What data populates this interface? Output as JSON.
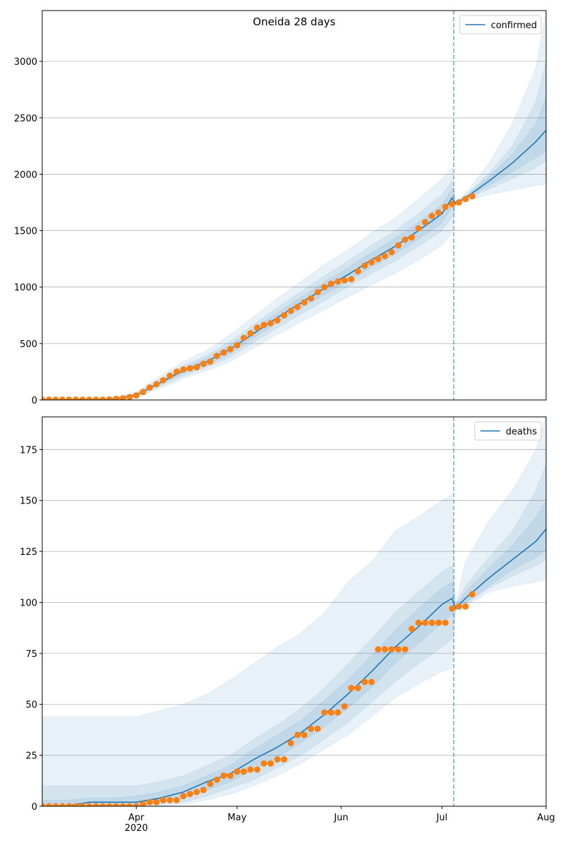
{
  "chart_data": [
    {
      "type": "line",
      "title": "Oneida 28 days",
      "x": [
        0,
        7,
        14,
        21,
        28,
        35,
        42,
        49,
        56,
        63,
        70,
        77,
        84,
        91,
        98,
        105,
        112,
        119,
        122,
        123,
        126,
        133,
        140,
        147,
        150
      ],
      "series": [
        {
          "name": "confirmed",
          "color": "#1f77b4",
          "values": [
            0,
            0,
            2,
            5,
            45,
            150,
            260,
            340,
            450,
            590,
            730,
            860,
            990,
            1110,
            1240,
            1360,
            1500,
            1650,
            1790,
            1740,
            1790,
            1940,
            2100,
            2290,
            2390
          ]
        }
      ],
      "bands": [
        {
          "lower": [
            0,
            0,
            0,
            0,
            25,
            100,
            190,
            260,
            340,
            460,
            580,
            690,
            800,
            910,
            1020,
            1120,
            1240,
            1370,
            1480,
            1720,
            1760,
            1820,
            1860,
            1900,
            1910
          ],
          "upper": [
            5,
            5,
            8,
            15,
            70,
            210,
            340,
            440,
            580,
            740,
            900,
            1050,
            1200,
            1330,
            1480,
            1610,
            1780,
            1960,
            2060,
            1760,
            1830,
            2100,
            2450,
            2950,
            3450
          ]
        },
        {
          "lower": [
            0,
            0,
            0,
            2,
            30,
            120,
            215,
            290,
            380,
            510,
            640,
            760,
            880,
            1000,
            1120,
            1230,
            1360,
            1500,
            1620,
            1730,
            1775,
            1870,
            1960,
            2060,
            2120
          ],
          "upper": [
            3,
            3,
            5,
            10,
            60,
            185,
            305,
            395,
            520,
            670,
            820,
            960,
            1100,
            1230,
            1370,
            1500,
            1650,
            1820,
            1940,
            1755,
            1810,
            2010,
            2250,
            2650,
            3000
          ]
        },
        {
          "lower": [
            0,
            0,
            1,
            3,
            38,
            135,
            235,
            310,
            410,
            550,
            685,
            810,
            935,
            1050,
            1175,
            1290,
            1425,
            1565,
            1710,
            1735,
            1780,
            1900,
            2020,
            2150,
            2200
          ],
          "upper": [
            1,
            1,
            3,
            7,
            52,
            165,
            285,
            370,
            490,
            630,
            775,
            910,
            1045,
            1170,
            1305,
            1430,
            1575,
            1735,
            1870,
            1748,
            1800,
            1980,
            2180,
            2450,
            2680
          ]
        }
      ],
      "band_color": "#1f77b4",
      "observed": {
        "color": "#ff7f0e",
        "x": [
          0,
          2,
          4,
          6,
          8,
          10,
          12,
          14,
          16,
          18,
          20,
          22,
          24,
          26,
          28,
          30,
          32,
          34,
          36,
          38,
          40,
          42,
          44,
          46,
          48,
          50,
          52,
          54,
          56,
          58,
          60,
          62,
          64,
          66,
          68,
          70,
          72,
          74,
          76,
          78,
          80,
          82,
          84,
          86,
          88,
          90,
          92,
          94,
          96,
          98,
          100,
          102,
          104,
          106,
          108,
          110,
          112,
          114,
          116,
          118,
          120,
          122,
          124,
          126,
          128
        ],
        "values": [
          2,
          2,
          2,
          2,
          2,
          2,
          2,
          2,
          2,
          2,
          5,
          10,
          15,
          25,
          40,
          70,
          110,
          140,
          175,
          215,
          250,
          270,
          280,
          290,
          320,
          340,
          390,
          420,
          450,
          485,
          550,
          590,
          640,
          665,
          680,
          705,
          750,
          790,
          825,
          865,
          900,
          955,
          1000,
          1030,
          1050,
          1060,
          1070,
          1140,
          1190,
          1220,
          1250,
          1275,
          1310,
          1370,
          1420,
          1440,
          1520,
          1575,
          1630,
          1660,
          1710,
          1735,
          1750,
          1780,
          1805
        ]
      },
      "forecast_start": 122.5,
      "xlim": [
        0,
        150
      ],
      "ylim": [
        0,
        3450
      ],
      "yticks": [
        0,
        500,
        1000,
        1500,
        2000,
        2500,
        3000
      ],
      "grid": true,
      "legend": "upper right"
    },
    {
      "type": "line",
      "x": [
        0,
        7,
        14,
        21,
        28,
        35,
        42,
        49,
        56,
        63,
        70,
        77,
        84,
        91,
        98,
        105,
        112,
        119,
        122,
        123,
        126,
        133,
        140,
        147,
        150
      ],
      "series": [
        {
          "name": "deaths",
          "color": "#1f77b4",
          "values": [
            0,
            0,
            2,
            2,
            2,
            4,
            7,
            12,
            16,
            23,
            29,
            36,
            45,
            55,
            66,
            78,
            88,
            99,
            102,
            97,
            102,
            112,
            121,
            130,
            136
          ]
        }
      ],
      "bands": [
        {
          "lower": [
            0,
            0,
            0,
            0,
            0,
            0,
            1,
            3,
            6,
            10,
            15,
            21,
            28,
            35,
            44,
            53,
            60,
            66,
            68,
            96,
            98,
            105,
            108,
            110,
            111
          ],
          "upper": [
            44,
            44,
            44,
            44,
            44,
            47,
            50,
            55,
            62,
            70,
            78,
            85,
            95,
            110,
            120,
            135,
            142,
            150,
            153,
            98,
            120,
            140,
            155,
            175,
            192
          ]
        },
        {
          "lower": [
            0,
            0,
            0,
            0,
            0,
            1,
            2,
            5,
            9,
            13,
            19,
            25,
            33,
            41,
            51,
            61,
            70,
            78,
            82,
            96,
            99,
            107,
            113,
            118,
            121
          ],
          "upper": [
            10,
            10,
            10,
            10,
            10,
            12,
            15,
            20,
            25,
            33,
            40,
            48,
            58,
            70,
            82,
            95,
            105,
            115,
            118,
            99,
            108,
            122,
            135,
            155,
            168
          ]
        },
        {
          "lower": [
            0,
            0,
            0,
            0,
            0,
            2,
            4,
            8,
            12,
            18,
            24,
            31,
            39,
            48,
            58,
            70,
            80,
            90,
            94,
            96,
            100,
            108,
            116,
            122,
            126
          ],
          "upper": [
            3,
            3,
            4,
            4,
            5,
            7,
            10,
            15,
            20,
            28,
            35,
            42,
            52,
            62,
            74,
            86,
            97,
            107,
            110,
            98,
            105,
            117,
            128,
            142,
            150
          ]
        }
      ],
      "band_color": "#1f77b4",
      "observed": {
        "color": "#ff7f0e",
        "x": [
          0,
          2,
          4,
          6,
          8,
          10,
          12,
          14,
          16,
          18,
          20,
          22,
          24,
          26,
          28,
          30,
          32,
          34,
          36,
          38,
          40,
          42,
          44,
          46,
          48,
          50,
          52,
          54,
          56,
          58,
          60,
          62,
          64,
          66,
          68,
          70,
          72,
          74,
          76,
          78,
          80,
          82,
          84,
          86,
          88,
          90,
          92,
          94,
          96,
          98,
          100,
          102,
          104,
          106,
          108,
          110,
          112,
          114,
          116,
          118,
          120,
          122,
          124,
          126,
          128
        ],
        "values": [
          0,
          0,
          0,
          0,
          0,
          0,
          0,
          0,
          0,
          0,
          0,
          0,
          0,
          0,
          0,
          1,
          2,
          2,
          3,
          3,
          3,
          5,
          6,
          7,
          8,
          11,
          13,
          15,
          15,
          17,
          17,
          18,
          18,
          21,
          21,
          23,
          23,
          31,
          35,
          35,
          38,
          38,
          46,
          46,
          46,
          49,
          58,
          58,
          61,
          61,
          77,
          77,
          77,
          77,
          77,
          87,
          90,
          90,
          90,
          90,
          90,
          97,
          98,
          98,
          104
        ]
      },
      "forecast_start": 122.5,
      "xlim": [
        0,
        150
      ],
      "xticks": [
        {
          "value": 28,
          "label": "Apr\n2020"
        },
        {
          "value": 58,
          "label": "May"
        },
        {
          "value": 89,
          "label": "Jun"
        },
        {
          "value": 119,
          "label": "Jul"
        },
        {
          "value": 150,
          "label": "Aug"
        }
      ],
      "ylim": [
        0,
        191
      ],
      "yticks": [
        0,
        25,
        50,
        75,
        100,
        125,
        150,
        175
      ],
      "grid": true,
      "legend": "upper right"
    }
  ]
}
